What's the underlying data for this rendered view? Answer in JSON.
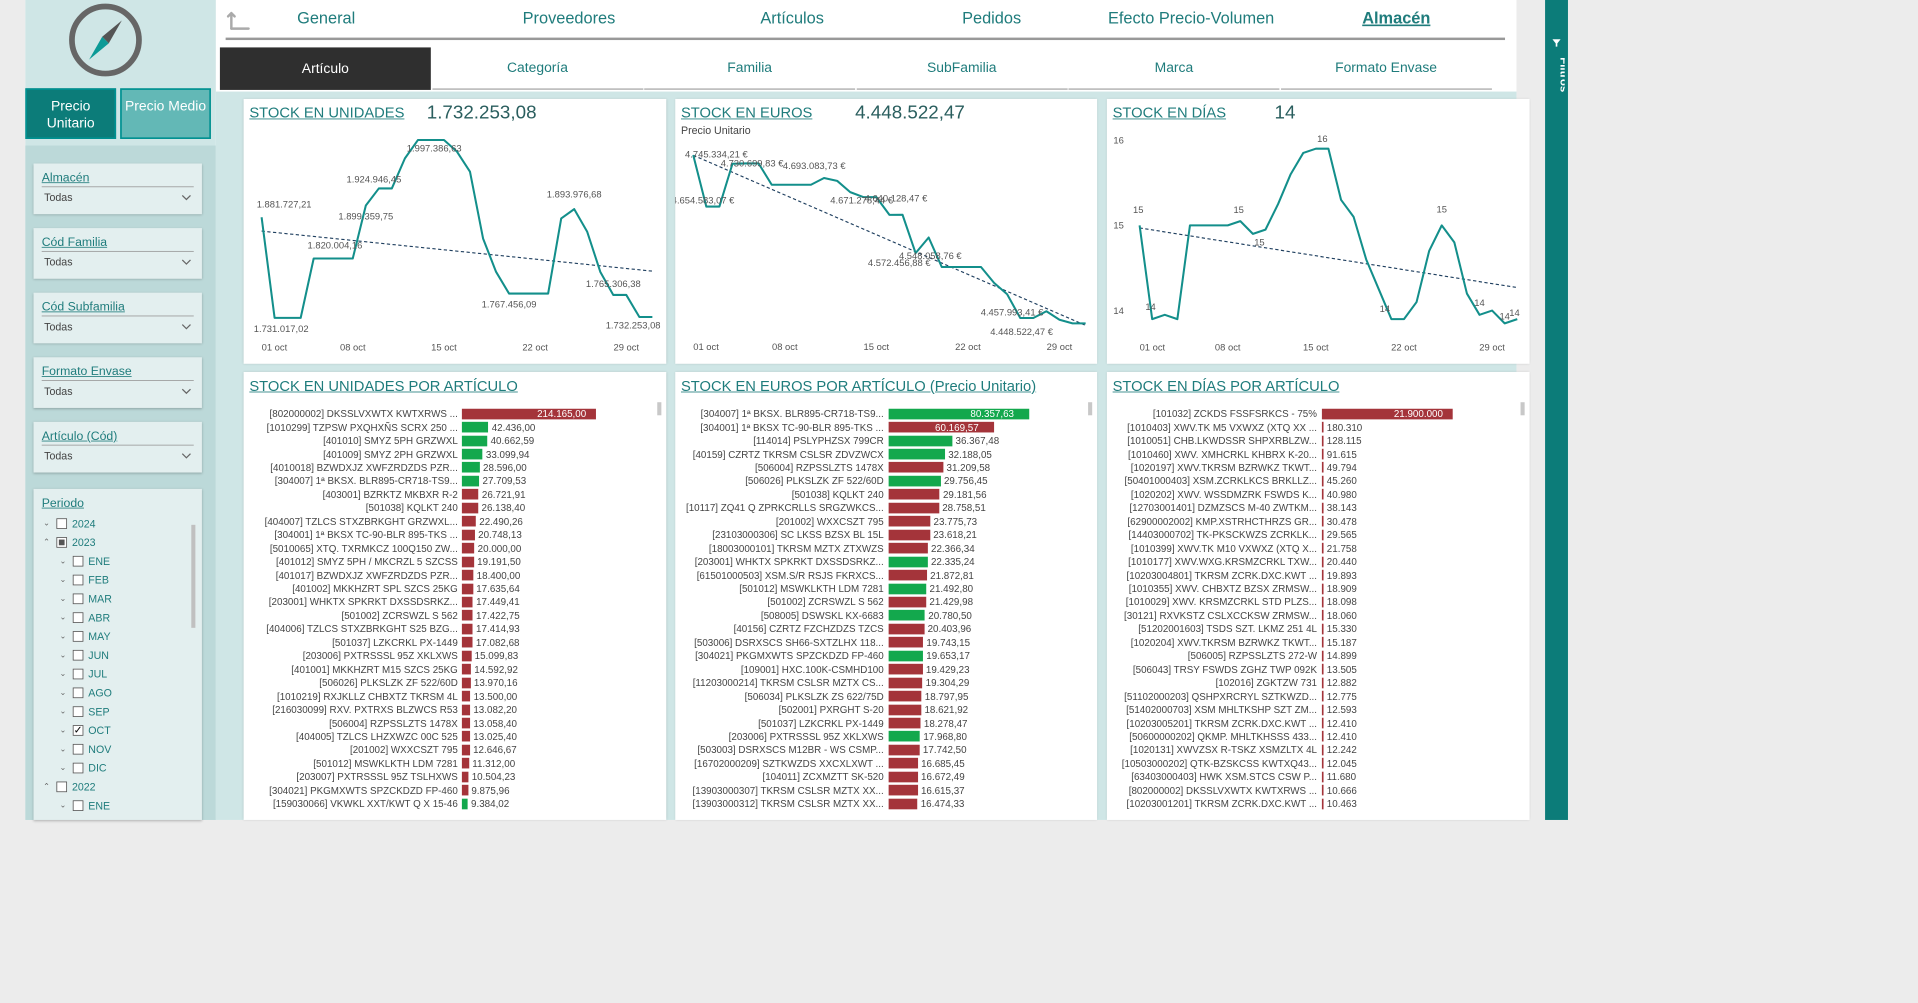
{
  "nav": {
    "tabs": [
      {
        "label": "General",
        "active": false
      },
      {
        "label": "Proveedores",
        "active": false
      },
      {
        "label": "Artículos",
        "active": false
      },
      {
        "label": "Pedidos",
        "active": false
      },
      {
        "label": "Efecto Precio-Volumen",
        "active": false
      },
      {
        "label": "Almacén",
        "active": true
      }
    ]
  },
  "subtabs": [
    {
      "label": "Artículo",
      "active": true
    },
    {
      "label": "Categoría",
      "active": false
    },
    {
      "label": "Familia",
      "active": false
    },
    {
      "label": "SubFamilia",
      "active": false
    },
    {
      "label": "Marca",
      "active": false
    },
    {
      "label": "Formato Envase",
      "active": false
    }
  ],
  "toggle": {
    "unit_label": "Precio Unitario",
    "medio_label": "Precio Medio"
  },
  "filters": [
    {
      "label": "Almacén",
      "value": "Todas"
    },
    {
      "label": "Cód Familia",
      "value": "Todas"
    },
    {
      "label": "Cód Subfamilia",
      "value": "Todas"
    },
    {
      "label": "Formato Envase",
      "value": "Todas"
    },
    {
      "label": "Artículo (Cód)",
      "value": "Todas"
    }
  ],
  "periodo": {
    "label": "Periodo",
    "items": [
      {
        "label": "2024",
        "level": 0,
        "expanded": false,
        "state": "none"
      },
      {
        "label": "2023",
        "level": 0,
        "expanded": true,
        "state": "partial"
      },
      {
        "label": "ENE",
        "level": 1,
        "expanded": false,
        "state": "none"
      },
      {
        "label": "FEB",
        "level": 1,
        "expanded": false,
        "state": "none"
      },
      {
        "label": "MAR",
        "level": 1,
        "expanded": false,
        "state": "none"
      },
      {
        "label": "ABR",
        "level": 1,
        "expanded": false,
        "state": "none"
      },
      {
        "label": "MAY",
        "level": 1,
        "expanded": false,
        "state": "none"
      },
      {
        "label": "JUN",
        "level": 1,
        "expanded": false,
        "state": "none"
      },
      {
        "label": "JUL",
        "level": 1,
        "expanded": false,
        "state": "none"
      },
      {
        "label": "AGO",
        "level": 1,
        "expanded": false,
        "state": "none"
      },
      {
        "label": "SEP",
        "level": 1,
        "expanded": false,
        "state": "none"
      },
      {
        "label": "OCT",
        "level": 1,
        "expanded": false,
        "state": "checked"
      },
      {
        "label": "NOV",
        "level": 1,
        "expanded": false,
        "state": "none"
      },
      {
        "label": "DIC",
        "level": 1,
        "expanded": false,
        "state": "none"
      },
      {
        "label": "2022",
        "level": 0,
        "expanded": true,
        "state": "none"
      },
      {
        "label": "ENE",
        "level": 1,
        "expanded": false,
        "state": "none"
      }
    ]
  },
  "right_pane": {
    "label": "Filtros"
  },
  "colors": {
    "teal": "#0c7c79",
    "line": "#138f8b",
    "red": "#a4343a",
    "green": "#13a84d",
    "trend": "#1f3f5f"
  },
  "cards": {
    "units_line": {
      "title": "STOCK EN UNIDADES",
      "kpi": "1.732.253,08"
    },
    "euros_line": {
      "title": "STOCK EN EUROS",
      "kpi": "4.448.522,47",
      "subtitle": "Precio Unitario"
    },
    "days_line": {
      "title": "STOCK EN DÍAS",
      "kpi": "14"
    },
    "units_bar": {
      "title": "STOCK EN UNIDADES POR ARTÍCULO"
    },
    "euros_bar": {
      "title": "STOCK EN EUROS POR ARTÍCULO (Precio Unitario)"
    },
    "days_bar": {
      "title": "STOCK EN DÍAS POR ARTÍCULO"
    }
  },
  "chart_data": [
    {
      "id": "units_line",
      "type": "line",
      "title": "STOCK EN UNIDADES",
      "x": [
        "01 oct",
        "02 oct",
        "03 oct",
        "04 oct",
        "05 oct",
        "06 oct",
        "07 oct",
        "08 oct",
        "09 oct",
        "10 oct",
        "11 oct",
        "12 oct",
        "13 oct",
        "14 oct",
        "15 oct",
        "16 oct",
        "17 oct",
        "18 oct",
        "19 oct",
        "20 oct",
        "21 oct",
        "22 oct",
        "23 oct",
        "24 oct",
        "25 oct",
        "26 oct",
        "27 oct",
        "28 oct",
        "29 oct",
        "30 oct",
        "31 oct"
      ],
      "xticks": [
        "01 oct",
        "08 oct",
        "15 oct",
        "22 oct",
        "29 oct"
      ],
      "values": [
        1881727.21,
        1731017.02,
        1731017.02,
        1731017.02,
        1820004.16,
        1820004.16,
        1820004.16,
        1820004.16,
        1899359.75,
        1924946.45,
        1924946.45,
        1970000,
        1997386.63,
        1997386.63,
        1997386.63,
        1980000,
        1950000,
        1850000,
        1800000,
        1767456.09,
        1767456.09,
        1767456.09,
        1767456.09,
        1880000,
        1893976.68,
        1860000,
        1800000,
        1765306.38,
        1765306.38,
        1732253.08,
        1732253.08
      ],
      "point_labels": [
        {
          "i": 0,
          "text": "1.881.727,21"
        },
        {
          "i": 1,
          "text": "1.731.017,02"
        },
        {
          "i": 4,
          "text": "1.820.004,16"
        },
        {
          "i": 8,
          "text": "1.899.359,75"
        },
        {
          "i": 9,
          "text": "1.924.946,45"
        },
        {
          "i": 13,
          "text": "1.997.386,63"
        },
        {
          "i": 19,
          "text": "1.767.456,09"
        },
        {
          "i": 24,
          "text": "1.893.976,68"
        },
        {
          "i": 27,
          "text": "1.765.306,38"
        },
        {
          "i": 30,
          "text": "1.732.253,08"
        }
      ],
      "ylim": [
        1710000,
        2010000
      ],
      "trend": [
        1861000,
        1801000
      ]
    },
    {
      "id": "euros_line",
      "type": "line",
      "title": "STOCK EN EUROS",
      "subtitle": "Precio Unitario",
      "x": [
        "01 oct",
        "02 oct",
        "03 oct",
        "04 oct",
        "05 oct",
        "06 oct",
        "07 oct",
        "08 oct",
        "09 oct",
        "10 oct",
        "11 oct",
        "12 oct",
        "13 oct",
        "14 oct",
        "15 oct",
        "16 oct",
        "17 oct",
        "18 oct",
        "19 oct",
        "20 oct",
        "21 oct",
        "22 oct",
        "23 oct",
        "24 oct",
        "25 oct",
        "26 oct",
        "27 oct",
        "28 oct",
        "29 oct",
        "30 oct",
        "31 oct"
      ],
      "xticks": [
        "01 oct",
        "08 oct",
        "15 oct",
        "22 oct",
        "29 oct"
      ],
      "values": [
        4745334.21,
        4654583.07,
        4654583.07,
        4730000,
        4730699.83,
        4730699.83,
        4693083.73,
        4693083.73,
        4693083.73,
        4693083.73,
        4705000,
        4700000,
        4680000,
        4671278.44,
        4671278.44,
        4640000,
        4640128.47,
        4572456.88,
        4600000,
        4548058.76,
        4548058.76,
        4548058.76,
        4548058.76,
        4520000,
        4500000,
        4457993.41,
        4457993.41,
        4470000,
        4455000,
        4448522.47,
        4448522.47
      ],
      "point_labels": [
        {
          "i": 0,
          "text": "4.745.334,21 €"
        },
        {
          "i": 1,
          "text": "4.654.583,07 €"
        },
        {
          "i": 4,
          "text": "4.730.699,83 €"
        },
        {
          "i": 9,
          "text": "4.693.083,73 €"
        },
        {
          "i": 13,
          "text": "4.671.278,44 €"
        },
        {
          "i": 16,
          "text": "4.640.128,47 €"
        },
        {
          "i": 17,
          "text": "4.572.456,88 €"
        },
        {
          "i": 19,
          "text": "4.548.058,76 €"
        },
        {
          "i": 25,
          "text": "4.457.993,41 €"
        },
        {
          "i": 30,
          "text": "4.448.522,47 €"
        }
      ],
      "ylim": [
        4435000,
        4755000
      ],
      "trend": [
        4745000,
        4445000
      ]
    },
    {
      "id": "days_line",
      "type": "line",
      "title": "STOCK EN DÍAS",
      "x": [
        "01 oct",
        "02 oct",
        "03 oct",
        "04 oct",
        "05 oct",
        "06 oct",
        "07 oct",
        "08 oct",
        "09 oct",
        "10 oct",
        "11 oct",
        "12 oct",
        "13 oct",
        "14 oct",
        "15 oct",
        "16 oct",
        "17 oct",
        "18 oct",
        "19 oct",
        "20 oct",
        "21 oct",
        "22 oct",
        "23 oct",
        "24 oct",
        "25 oct",
        "26 oct",
        "27 oct",
        "28 oct",
        "29 oct",
        "30 oct",
        "31 oct"
      ],
      "xticks": [
        "01 oct",
        "08 oct",
        "15 oct",
        "22 oct",
        "29 oct"
      ],
      "yticks": [
        "14",
        "15",
        "16"
      ],
      "values": [
        15.0,
        13.9,
        13.95,
        13.9,
        15.0,
        15.0,
        15.0,
        15.0,
        15.05,
        14.9,
        14.95,
        15.25,
        15.6,
        15.85,
        15.9,
        15.9,
        15.3,
        15.1,
        14.6,
        14.25,
        13.9,
        13.9,
        14.1,
        14.7,
        15.0,
        14.8,
        14.2,
        13.95,
        14.0,
        13.85,
        13.9
      ],
      "point_labels": [
        {
          "i": 0,
          "text": "15"
        },
        {
          "i": 1,
          "text": "14"
        },
        {
          "i": 8,
          "text": "15"
        },
        {
          "i": 9,
          "text": "15"
        },
        {
          "i": 14,
          "text": "16"
        },
        {
          "i": 20,
          "text": "14"
        },
        {
          "i": 24,
          "text": "15"
        },
        {
          "i": 27,
          "text": "14"
        },
        {
          "i": 29,
          "text": "14"
        },
        {
          "i": 30,
          "text": "14"
        }
      ],
      "ylim": [
        13.75,
        16.1
      ],
      "trend": [
        14.97,
        14.27
      ]
    },
    {
      "id": "units_bar",
      "type": "bar",
      "title": "STOCK EN UNIDADES POR ARTÍCULO",
      "categories": [
        "[802000002] DKSSLVXWTX KWTXRWS ...",
        "[1010299] TZPSW PXQHXÑS SCRX 250 ...",
        "[401010] SMYZ 5PH GRZWXL",
        "[401009] SMYZ 2PH GRZWXL",
        "[4010018] BZWDXJZ XWFZRDZDS PZR...",
        "[304007] 1ª BKSX. BLR895-CR718-TS9...",
        "[403001] BZRKTZ MKBXR R-2",
        "[501038] KQLKT 240",
        "[404007] TZLCS STXZBRKGHT GRZWXL...",
        "[304001] 1ª BKSX TC-90-BLR 895-TKS ...",
        "[5010065] XTQ. TXRMKCZ 100Q150 ZW...",
        "[401012] SMYZ 5PH / MKCRZL 5 SZCSS",
        "[401017] BZWDXJZ XWFZRDZDS PZR...",
        "[401002] MKKHZRT SPL SZCS 25KG",
        "[203001] WHKTX SPKRKT DXSSDSRKZ...",
        "[501002] ZCRSWZL S 562",
        "[404006] TZLCS STXZBRKGHT S25 BZG...",
        "[501037] LZKCRKL PX-1449",
        "[203006] PXTRSSSL 95Z XKLXWS",
        "[401001] MKKHZRT M15 SZCS 25KG",
        "[506026] PLKSLZK ZF 522/60D",
        "[1010219] RXJKLLZ CHBXTZ TKRSM 4L",
        "[216030099] RXV. PXTRXS BLZWCS R53",
        "[506004] RZPSSLZTS 1478X",
        "[404005] TZLCS LHZXWZC 00C 525",
        "[201002] WXXCSZT 795",
        "[501012] MSWKLKTH LDM 7281",
        "[203007] PXTRSSSL 95Z TSLHXWS",
        "[304021] PKGMXWTS SPZCKDZD FP-460",
        "[159030066] VKWKL XXT/KWT Q X 15-46"
      ],
      "values": [
        214165.0,
        42436.0,
        40662.59,
        33099.94,
        28596.0,
        27709.53,
        26721.91,
        26138.4,
        22490.26,
        20748.13,
        20000.0,
        19191.5,
        18400.0,
        17635.64,
        17449.41,
        17422.75,
        17414.93,
        17082.68,
        15099.83,
        14592.92,
        13970.16,
        13500.0,
        13082.2,
        13058.4,
        13025.4,
        12646.67,
        11312.0,
        10504.23,
        9875.96,
        9384.02
      ],
      "value_labels": [
        "214.165,00",
        "42.436,00",
        "40.662,59",
        "33.099,94",
        "28.596,00",
        "27.709,53",
        "26.721,91",
        "26.138,40",
        "22.490,26",
        "20.748,13",
        "20.000,00",
        "19.191,50",
        "18.400,00",
        "17.635,64",
        "17.449,41",
        "17.422,75",
        "17.414,93",
        "17.082,68",
        "15.099,83",
        "14.592,92",
        "13.970,16",
        "13.500,00",
        "13.082,20",
        "13.058,40",
        "13.025,40",
        "12.646,67",
        "11.312,00",
        "10.504,23",
        "9.875,96",
        "9.384,02"
      ],
      "colors": [
        "red",
        "green",
        "green",
        "green",
        "green",
        "green",
        "red",
        "red",
        "red",
        "red",
        "red",
        "red",
        "red",
        "red",
        "red",
        "red",
        "red",
        "red",
        "red",
        "red",
        "red",
        "red",
        "red",
        "red",
        "red",
        "red",
        "red",
        "red",
        "red",
        "green"
      ]
    },
    {
      "id": "euros_bar",
      "type": "bar",
      "title": "STOCK EN EUROS POR ARTÍCULO (Precio Unitario)",
      "categories": [
        "[304007] 1ª BKSX. BLR895-CR718-TS9...",
        "[304001] 1ª BKSX TC-90-BLR 895-TKS ...",
        "[114014] PSLYPHZSX 799CR",
        "[40159] CZRTZ TKRSM CSLSR ZDVZWCX",
        "[506004] RZPSSLZTS 1478X",
        "[506026] PLKSLZK ZF 522/60D",
        "[501038] KQLKT 240",
        "[10117] ZQ41 Q ZPRKCRLLS SRGZWKCS...",
        "[201002] WXXCSZT 795",
        "[23103000306] SC LKSS BZSX BL 15L",
        "[18003000101] TKRSM MZTX ZTXWZS",
        "[203001] WHKTX SPKRKT DXSSDSRKZ...",
        "[61501000503] XSM.S/R RSJS FKRXCS...",
        "[501012] MSWKLKTH LDM 7281",
        "[501002] ZCRSWZL S 562",
        "[508005] DSWSKL KX-6683",
        "[40156] CZRTZ FZCHZDZS TZCS",
        "[503006] DSRXSCS SH66-SXTZLHX 118...",
        "[304021] PKGMXWTS SPZCKDZD FP-460",
        "[109001] HXC.100K-CSMHD100",
        "[11203000214] TKRSM CSLSR MZTX CS...",
        "[506034] PLKSLZK ZS 622/75D",
        "[502001] PXRGHT S-20",
        "[501037] LZKCRKL PX-1449",
        "[203006] PXTRSSSL 95Z XKLXWS",
        "[503003] DSRXSCS M12BR - WS CSMP...",
        "[16702000209] SZTKWZDS XXCXLXWT ...",
        "[104011] ZCXMZTT SK-520",
        "[13903000307] TKRSM CSLSR MZTX XX...",
        "[13903000312] TKRSM CSLSR MZTX XX..."
      ],
      "values": [
        80357.63,
        60169.57,
        36367.48,
        32188.05,
        31209.58,
        29756.45,
        29181.56,
        28758.51,
        23775.73,
        23618.21,
        22366.34,
        22335.24,
        21872.81,
        21492.8,
        21429.98,
        20780.5,
        20403.96,
        19743.15,
        19653.17,
        19429.23,
        19304.29,
        18797.95,
        18621.92,
        18278.47,
        17968.8,
        17742.5,
        16685.45,
        16672.49,
        16615.37,
        16474.33
      ],
      "value_labels": [
        "80.357,63",
        "60.169,57",
        "36.367,48",
        "32.188,05",
        "31.209,58",
        "29.756,45",
        "29.181,56",
        "28.758,51",
        "23.775,73",
        "23.618,21",
        "22.366,34",
        "22.335,24",
        "21.872,81",
        "21.492,80",
        "21.429,98",
        "20.780,50",
        "20.403,96",
        "19.743,15",
        "19.653,17",
        "19.429,23",
        "19.304,29",
        "18.797,95",
        "18.621,92",
        "18.278,47",
        "17.968,80",
        "17.742,50",
        "16.685,45",
        "16.672,49",
        "16.615,37",
        "16.474,33"
      ],
      "colors": [
        "green",
        "red",
        "green",
        "green",
        "red",
        "green",
        "red",
        "red",
        "red",
        "red",
        "red",
        "green",
        "red",
        "green",
        "red",
        "green",
        "red",
        "red",
        "green",
        "red",
        "red",
        "red",
        "red",
        "red",
        "green",
        "red",
        "red",
        "red",
        "red",
        "red"
      ]
    },
    {
      "id": "days_bar",
      "type": "bar",
      "title": "STOCK EN DÍAS POR ARTÍCULO",
      "categories": [
        "[101032] ZCKDS FSSFSRKCS - 75%",
        "[1010403] XWV.TK M5 VXWXZ (XTQ XX ...",
        "[1010051] CHB.LKWDSSR SHPXRBLZW...",
        "[1010460] XWV. XMHCRKL KHBRX K-20...",
        "[1020197] XWV.TKRSM BZRWKZ TKWT...",
        "[50401000403] XSM.ZCRKLKCS BRKLLZ...",
        "[1020202] XWV. WSSDMZRK FSWDS K...",
        "[12703001401] DZMZSCS M-40 ZWTKM...",
        "[62900002002] KMP.XSTRHCTHRZS GR...",
        "[14403000702] TK-PKSCKWZS ZCRKLK...",
        "[1010399] XWV.TK M10 VXWXZ (XTQ X...",
        "[1010177] XWV.WXG.KRSMZCRKL TXW...",
        "[10203004801] TKRSM ZCRK.DXC.KWT ...",
        "[1010355] XWV. CHBXTZ BZSX ZRMSW...",
        "[1010029] XWV. KRSMZCRKL STD PLZS...",
        "[30121] RXVKSTZ CSLXCCKSW ZRMSW...",
        "[51202001603] TSDS SZT. LKMZ 251 4L",
        "[1020204] XWV.TKRSM BZRWKZ TKWT...",
        "[506005] RZPSSLZTS 272-W",
        "[506043] TRSY FSWDS ZGHZ TWP 092K",
        "[102016] ZGKTZW 731",
        "[51102000203] QSHPXRCRYL SZTKWZD...",
        "[51402000703] XSM MHLTKSHP SZT ZM...",
        "[10203005201] TKRSM ZCRK.DXC.KWT ...",
        "[50600000202] QKMP. MHLTKHSSS 433...",
        "[1020131] XWVZSX R-TSKZ XSMZLTX 4L",
        "[10503000202] QTK-BZSKCSS KWTXQ43...",
        "[63403000403] HWK XSM.STCS CSW P...",
        "[802000002] DKSSLVXWTX KWTXRWS ...",
        "[10203001201] TKRSM ZCRK.DXC.KWT ..."
      ],
      "values": [
        21900000,
        180310,
        128115,
        91615,
        49794,
        45260,
        40980,
        38143,
        30478,
        29565,
        21758,
        20440,
        19893,
        18909,
        18098,
        18060,
        15330,
        15187,
        14899,
        13505,
        12882,
        12775,
        12593,
        12410,
        12410,
        12242,
        12045,
        11680,
        10666,
        10463
      ],
      "value_labels": [
        "21.900.000",
        "180.310",
        "128.115",
        "91.615",
        "49.794",
        "45.260",
        "40.980",
        "38.143",
        "30.478",
        "29.565",
        "21.758",
        "20.440",
        "19.893",
        "18.909",
        "18.098",
        "18.060",
        "15.330",
        "15.187",
        "14.899",
        "13.505",
        "12.882",
        "12.775",
        "12.593",
        "12.410",
        "12.410",
        "12.242",
        "12.045",
        "11.680",
        "10.666",
        "10.463"
      ],
      "colors": [
        "red",
        "red",
        "red",
        "red",
        "red",
        "red",
        "red",
        "red",
        "red",
        "red",
        "red",
        "red",
        "red",
        "red",
        "red",
        "red",
        "red",
        "red",
        "red",
        "red",
        "red",
        "red",
        "red",
        "red",
        "red",
        "red",
        "red",
        "red",
        "red",
        "red"
      ]
    }
  ]
}
